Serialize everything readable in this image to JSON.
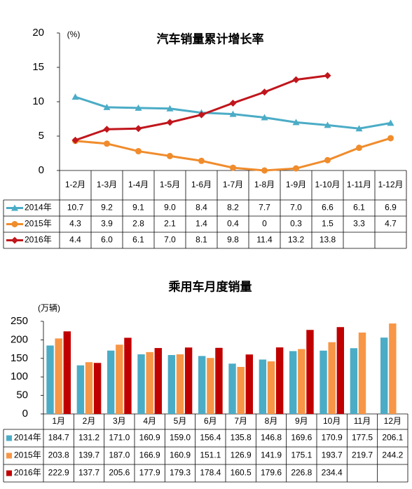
{
  "chart_data": [
    {
      "type": "line",
      "title": "汽车销量累计增长率",
      "unit_label": "(%)",
      "categories": [
        "1-2月",
        "1-3月",
        "1-4月",
        "1-5月",
        "1-6月",
        "1-7月",
        "1-8月",
        "1-9月",
        "1-10月",
        "1-11月",
        "1-12月"
      ],
      "ylim": [
        0,
        20
      ],
      "yticks": [
        0,
        5,
        10,
        15,
        20
      ],
      "series": [
        {
          "name": "2014年",
          "color": "#4bacc6",
          "marker": "triangle",
          "values": [
            10.7,
            9.2,
            9.1,
            9.0,
            8.4,
            8.2,
            7.7,
            7.0,
            6.6,
            6.1,
            6.9
          ],
          "value_labels": [
            "10.7",
            "9.2",
            "9.1",
            "9.0",
            "8.4",
            "8.2",
            "7.7",
            "7.0",
            "6.6",
            "6.1",
            "6.9"
          ]
        },
        {
          "name": "2015年",
          "color": "#f08c2c",
          "marker": "circle",
          "values": [
            4.3,
            3.9,
            2.8,
            2.1,
            1.4,
            0.4,
            0,
            0.3,
            1.5,
            3.3,
            4.7
          ]
        },
        {
          "name": "2016年",
          "color": "#c0161c",
          "marker": "diamond",
          "values": [
            4.4,
            6.0,
            6.1,
            7.0,
            8.1,
            9.8,
            11.4,
            13.2,
            13.8,
            null,
            null
          ],
          "value_labels": [
            "4.4",
            "6.0",
            "6.1",
            "7.0",
            "8.1",
            "9.8",
            "11.4",
            "13.2",
            "13.8",
            null,
            null
          ]
        }
      ]
    },
    {
      "type": "bar",
      "title": "乘用车月度销量",
      "unit_label": "(万辆)",
      "categories": [
        "1月",
        "2月",
        "3月",
        "4月",
        "5月",
        "6月",
        "7月",
        "8月",
        "9月",
        "10月",
        "11月",
        "12月"
      ],
      "ylim": [
        0,
        250
      ],
      "yticks": [
        0,
        50,
        100,
        150,
        200,
        250
      ],
      "series": [
        {
          "name": "2014年",
          "color": "#4bacc6",
          "values": [
            184.7,
            131.2,
            171.0,
            160.9,
            159.0,
            156.4,
            135.8,
            146.8,
            169.6,
            170.9,
            177.5,
            206.1
          ],
          "value_labels": [
            "184.7",
            "131.2",
            "171.0",
            "160.9",
            "159.0",
            "156.4",
            "135.8",
            "146.8",
            "169.6",
            "170.9",
            "177.5",
            "206.1"
          ]
        },
        {
          "name": "2015年",
          "color": "#f79646",
          "values": [
            203.8,
            139.7,
            187.0,
            166.9,
            160.9,
            151.1,
            126.9,
            141.9,
            175.1,
            193.7,
            219.7,
            244.2
          ],
          "value_labels": [
            "203.8",
            "139.7",
            "187.0",
            "166.9",
            "160.9",
            "151.1",
            "126.9",
            "141.9",
            "175.1",
            "193.7",
            "219.7",
            "244.2"
          ]
        },
        {
          "name": "2016年",
          "color": "#c00000",
          "values": [
            222.9,
            137.7,
            205.6,
            177.9,
            179.3,
            178.4,
            160.5,
            179.6,
            226.8,
            234.4,
            null,
            null
          ]
        }
      ]
    }
  ]
}
